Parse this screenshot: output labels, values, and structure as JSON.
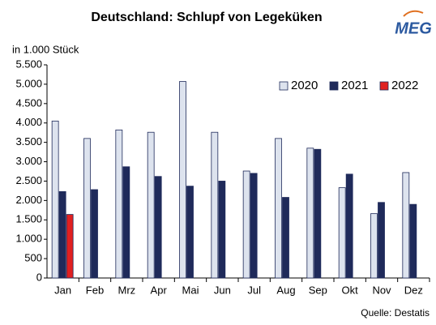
{
  "chart_data": {
    "type": "bar",
    "title": "Deutschland: Schlupf von Legeküken",
    "y_label": "in 1.000 Stück",
    "source": "Quelle: Destatis",
    "logo": "MEG",
    "categories": [
      "Jan",
      "Feb",
      "Mrz",
      "Apr",
      "Mai",
      "Jun",
      "Jul",
      "Aug",
      "Sep",
      "Okt",
      "Nov",
      "Dez"
    ],
    "series": [
      {
        "name": "2020",
        "color": "#dde3ee",
        "values": [
          4050,
          3600,
          3820,
          3760,
          5070,
          3760,
          2760,
          3600,
          3350,
          2330,
          1660,
          2720
        ]
      },
      {
        "name": "2021",
        "color": "#1f2a5a",
        "values": [
          2230,
          2280,
          2870,
          2620,
          2370,
          2500,
          2700,
          2080,
          3320,
          2680,
          1950,
          1900
        ]
      },
      {
        "name": "2022",
        "color": "#e02020",
        "values": [
          1640,
          null,
          null,
          null,
          null,
          null,
          null,
          null,
          null,
          null,
          null,
          null
        ]
      }
    ],
    "ylim": [
      0,
      5500
    ],
    "yticks": [
      0,
      {
        "value": 500,
        "label": "500"
      },
      {
        "value": 1000,
        "label": "1.000"
      },
      {
        "value": 1500,
        "label": "1.500"
      },
      {
        "value": 2000,
        "label": "2.000"
      },
      {
        "value": 2500,
        "label": "2.500"
      },
      {
        "value": 3000,
        "label": "3.000"
      },
      {
        "value": 3500,
        "label": "3.500"
      },
      {
        "value": 4000,
        "label": "4.000"
      },
      {
        "value": 4500,
        "label": "4.500"
      },
      {
        "value": 5000,
        "label": "5.000"
      },
      {
        "value": 5500,
        "label": "5.500"
      }
    ],
    "grid": false,
    "legend": "top-right"
  }
}
